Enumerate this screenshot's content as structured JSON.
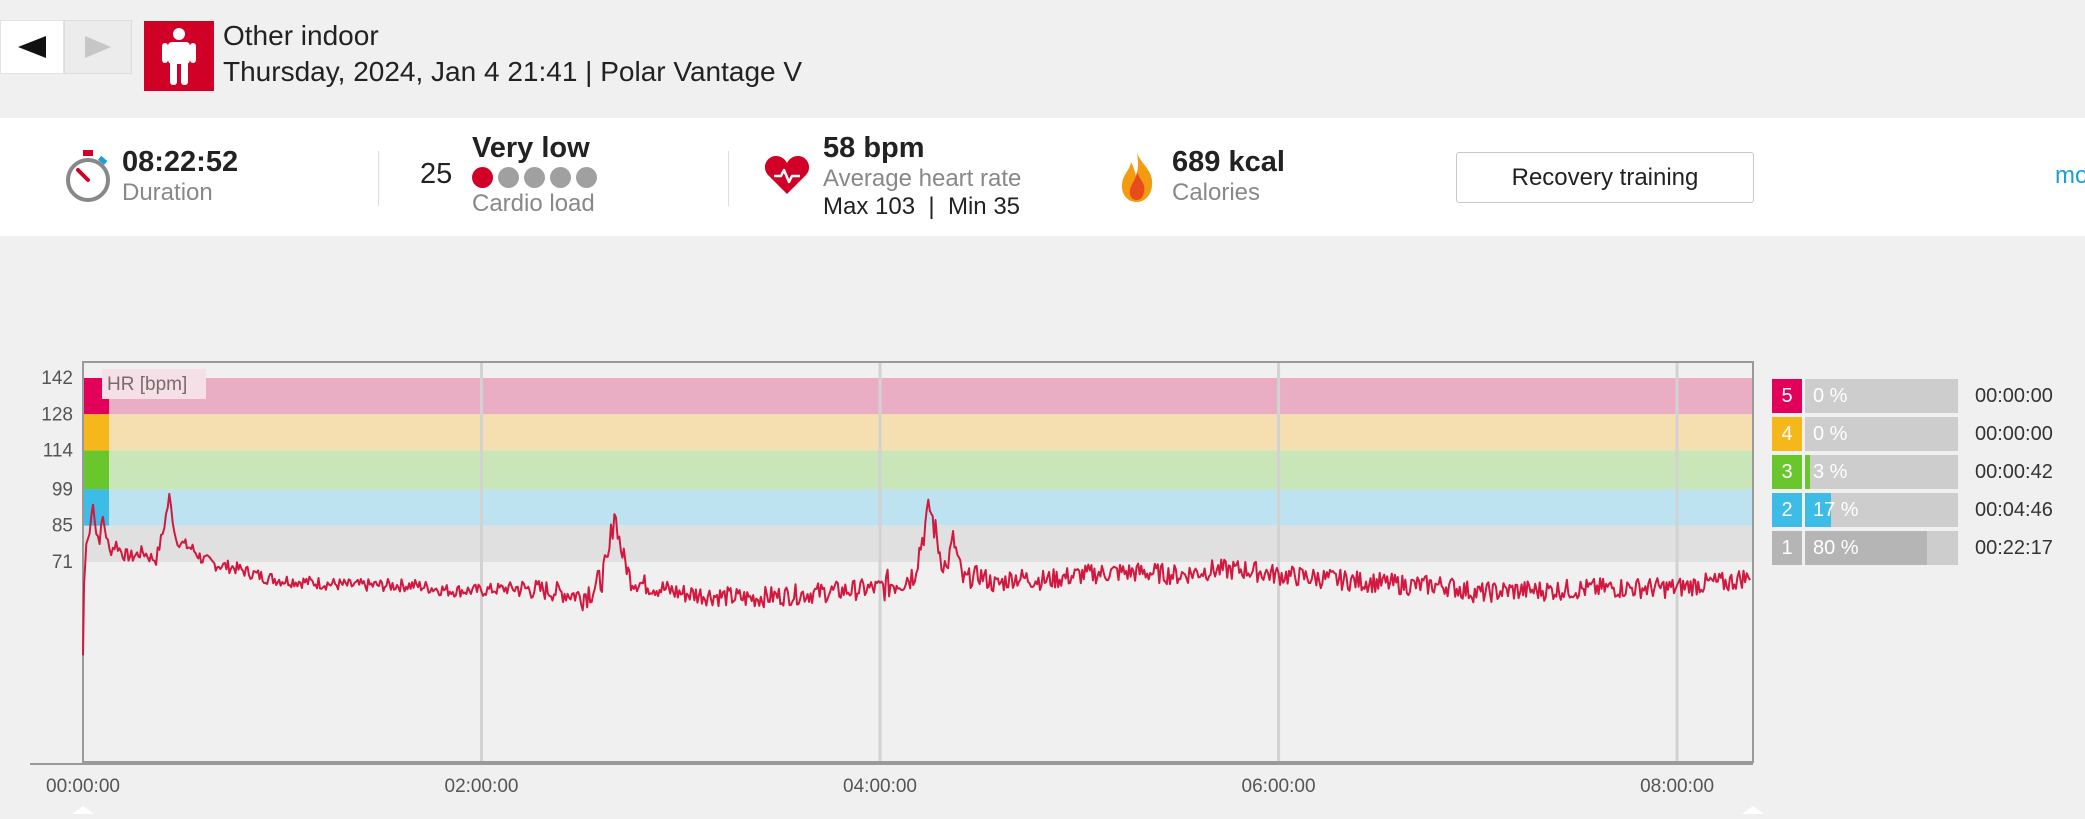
{
  "nav": {
    "prev_icon": "triangle-left-icon",
    "next_icon": "triangle-right-icon"
  },
  "session": {
    "sport_icon": "person-standing-icon",
    "sport": "Other indoor",
    "date_device": "Thursday, 2024, Jan 4 21:41 | Polar Vantage V"
  },
  "summary": {
    "duration": {
      "value": "08:22:52",
      "label": "Duration",
      "icon": "stopwatch-icon"
    },
    "cardio": {
      "score": "25",
      "level": "Very low",
      "label": "Cardio load",
      "dots_active": 1,
      "dots_total": 5
    },
    "heart": {
      "value": "58 bpm",
      "label": "Average heart rate",
      "max": "Max 103",
      "sep": "|",
      "min": "Min 35",
      "icon": "heart-icon"
    },
    "calories": {
      "value": "689 kcal",
      "label": "Calories",
      "icon": "flame-icon"
    },
    "training_benefit": "Recovery training",
    "more_link": "mo"
  },
  "colors": {
    "brand": "#d10027",
    "line": "#d2183e",
    "zone5": "#e3005a",
    "zone4": "#f6b71b",
    "zone3": "#6ac62d",
    "zone2": "#3cbce6",
    "zone1": "#b5b5b5",
    "link": "#1aa0d8"
  },
  "chart_data": {
    "type": "line",
    "ylabel": "HR [bpm]",
    "ylim": [
      35,
      142
    ],
    "y_ticks": [
      "142",
      "128",
      "114",
      "99",
      "85",
      "71"
    ],
    "x_ticks": [
      "00:00:00",
      "02:00:00",
      "04:00:00",
      "06:00:00",
      "08:00:00"
    ],
    "duration_seconds": 30172,
    "zone_bands": [
      {
        "zone": 5,
        "from": 128,
        "to": 142
      },
      {
        "zone": 4,
        "from": 114,
        "to": 128
      },
      {
        "zone": 3,
        "from": 99,
        "to": 114
      },
      {
        "zone": 2,
        "from": 85,
        "to": 99
      },
      {
        "zone": 1,
        "from": 71,
        "to": 85
      }
    ],
    "series": [
      {
        "name": "",
        "x_minutes": [
          0,
          0.3,
          1,
          2,
          3,
          4,
          5,
          6,
          8,
          10,
          12,
          15,
          18,
          20,
          22,
          24,
          26,
          28,
          30,
          33,
          36,
          40,
          45,
          50,
          55,
          60,
          70,
          80,
          90,
          100,
          110,
          120,
          130,
          140,
          150,
          155,
          158,
          160,
          162,
          165,
          170,
          180,
          190,
          200,
          210,
          220,
          230,
          240,
          250,
          255,
          258,
          260,
          262,
          265,
          270,
          275,
          280,
          290,
          300,
          310,
          320,
          330,
          340,
          350,
          360,
          370,
          380,
          390,
          400,
          410,
          420,
          430,
          440,
          460,
          480,
          490,
          495,
          500,
          502
        ],
        "y": [
          35,
          62,
          78,
          82,
          95,
          82,
          80,
          88,
          75,
          78,
          74,
          73,
          75,
          73,
          72,
          82,
          96,
          80,
          78,
          76,
          72,
          70,
          69,
          67,
          65,
          64,
          63,
          62,
          62,
          62,
          60,
          60,
          61,
          60,
          58,
          62,
          70,
          91,
          76,
          64,
          62,
          59,
          58,
          57,
          58,
          59,
          60,
          61,
          66,
          92,
          75,
          68,
          80,
          64,
          66,
          62,
          65,
          64,
          66,
          67,
          67,
          66,
          68,
          68,
          66,
          65,
          64,
          63,
          62,
          62,
          59,
          60,
          60,
          61,
          61,
          63,
          63,
          65,
          64
        ]
      }
    ]
  },
  "zones": [
    {
      "num": "5",
      "pct": "0 %",
      "fill": 0.0,
      "time": "00:00:00"
    },
    {
      "num": "4",
      "pct": "0 %",
      "fill": 0.0,
      "time": "00:00:00"
    },
    {
      "num": "3",
      "pct": "3 %",
      "fill": 0.03,
      "time": "00:00:42"
    },
    {
      "num": "2",
      "pct": "17 %",
      "fill": 0.17,
      "time": "00:04:46"
    },
    {
      "num": "1",
      "pct": "80 %",
      "fill": 0.8,
      "time": "00:22:17"
    }
  ]
}
